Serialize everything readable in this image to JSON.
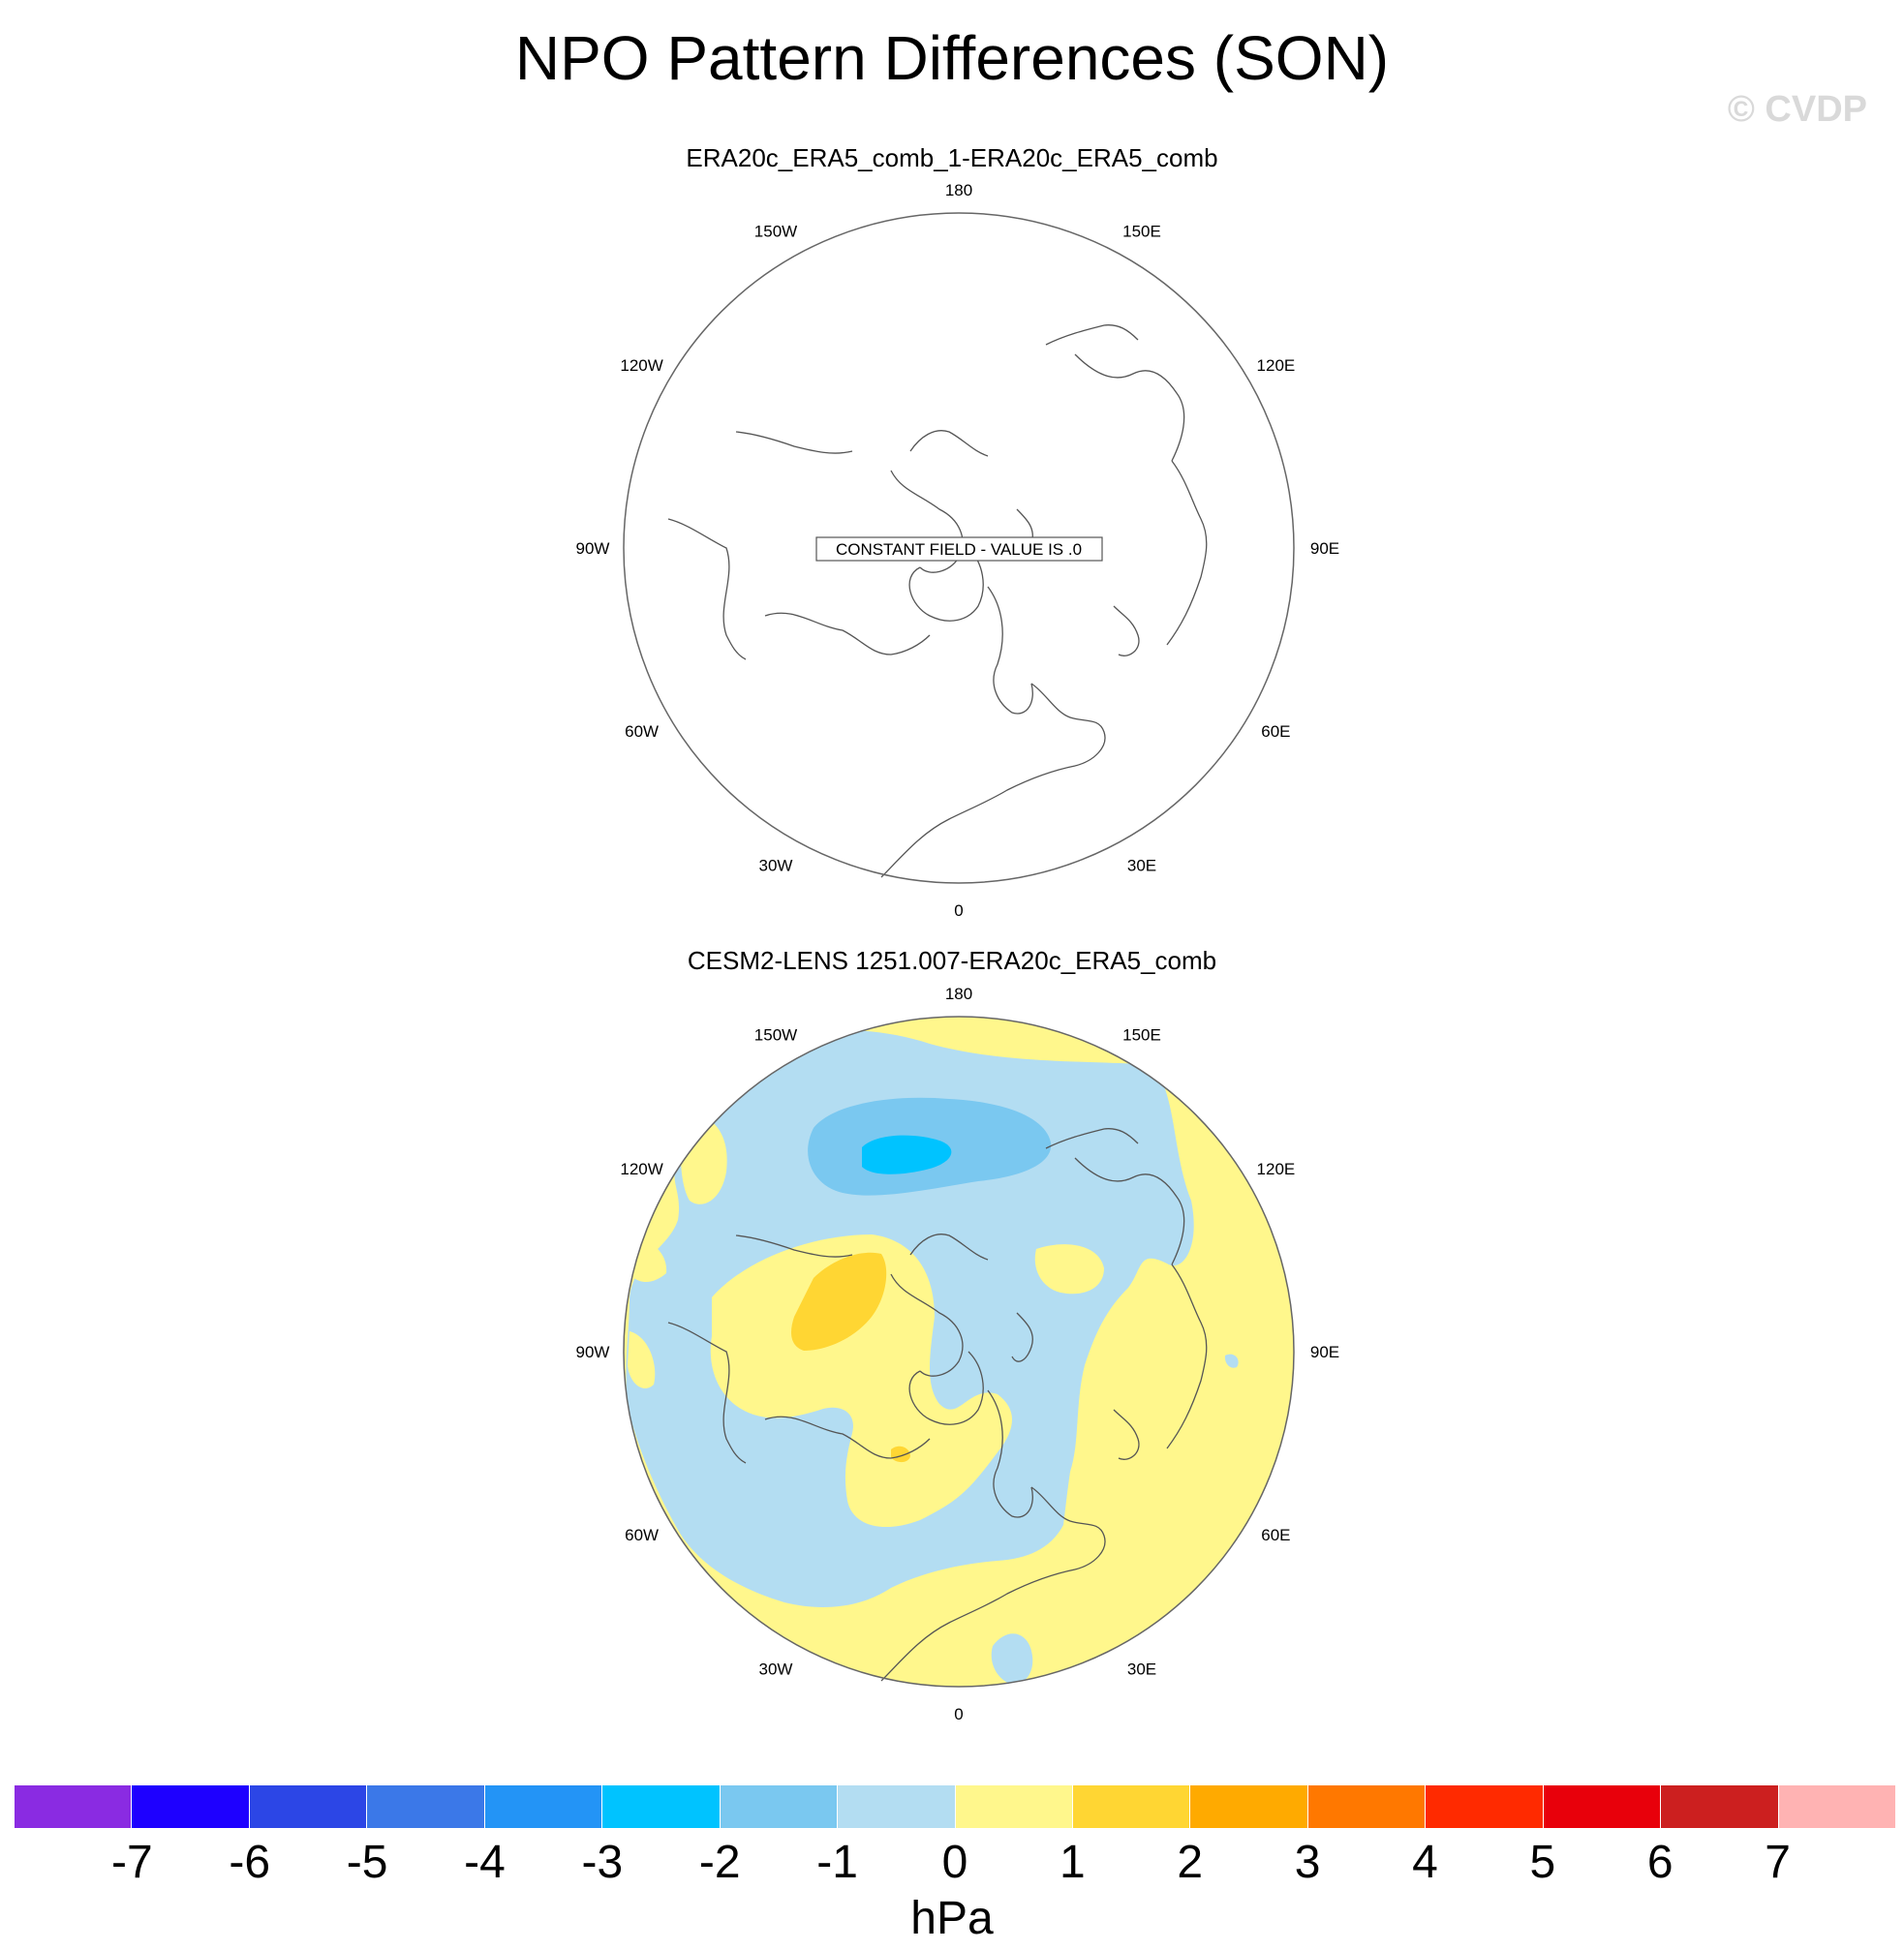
{
  "title": "NPO Pattern Differences (SON)",
  "watermark": "© CVDP",
  "panels": [
    {
      "title": "ERA20c_ERA5_comb_1-ERA20c_ERA5_comb",
      "note": "CONSTANT FIELD - VALUE IS .0"
    },
    {
      "title": "CESM2-LENS 1251.007-ERA20c_ERA5_comb"
    }
  ],
  "lon_labels": [
    "180",
    "150E",
    "120E",
    "90E",
    "60E",
    "30E",
    "0",
    "30W",
    "60W",
    "90W",
    "120W",
    "150W"
  ],
  "colorbar": {
    "units": "hPa",
    "ticks": [
      "-7",
      "-6",
      "-5",
      "-4",
      "-3",
      "-2",
      "-1",
      "0",
      "1",
      "2",
      "3",
      "4",
      "5",
      "6",
      "7"
    ],
    "colors": [
      "#8a2be2",
      "#1e00ff",
      "#2c46e6",
      "#3b78e8",
      "#2394f6",
      "#00c3ff",
      "#7ac8f0",
      "#b3ddf2",
      "#fff78c",
      "#ffd633",
      "#ffaa00",
      "#ff7800",
      "#ff2a00",
      "#e8000b",
      "#cc1f1f",
      "#ffb3b3"
    ]
  },
  "legend_colors": {
    "coast": "#555555",
    "ocean_border": "#666666"
  }
}
